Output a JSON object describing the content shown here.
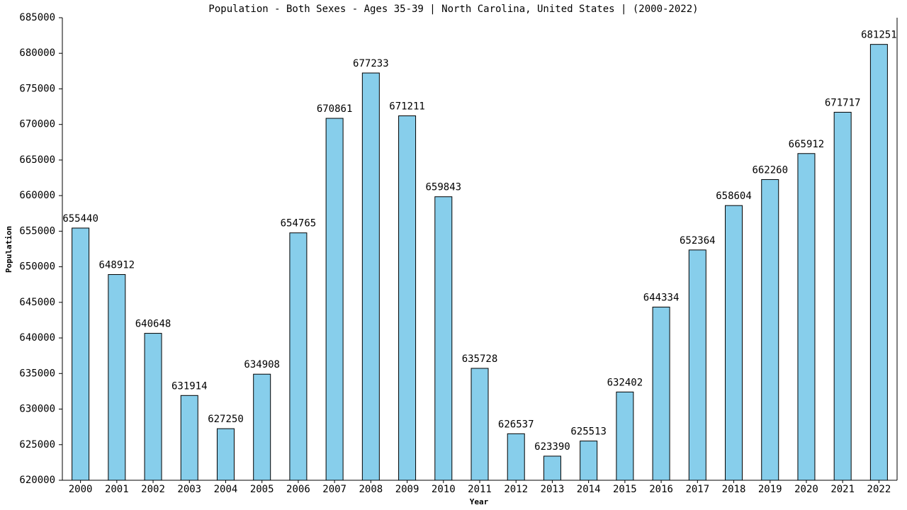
{
  "chart_data": {
    "type": "bar",
    "title": "Population - Both Sexes - Ages 35-39 | North Carolina, United States |  (2000-2022)",
    "x_label": "Year",
    "y_label": "Population",
    "categories": [
      "2000",
      "2001",
      "2002",
      "2003",
      "2004",
      "2005",
      "2006",
      "2007",
      "2008",
      "2009",
      "2010",
      "2011",
      "2012",
      "2013",
      "2014",
      "2015",
      "2016",
      "2017",
      "2018",
      "2019",
      "2020",
      "2021",
      "2022"
    ],
    "values": [
      655440,
      648912,
      640648,
      631914,
      627250,
      634908,
      654765,
      670861,
      677233,
      671211,
      659843,
      635728,
      626537,
      623390,
      625513,
      632402,
      644334,
      652364,
      658604,
      662260,
      665912,
      671717,
      681251
    ],
    "color": "#87ceeb",
    "ylim": [
      620000,
      685000
    ],
    "yticks": [
      620000,
      625000,
      630000,
      635000,
      640000,
      645000,
      650000,
      655000,
      660000,
      665000,
      670000,
      675000,
      680000,
      685000
    ]
  }
}
